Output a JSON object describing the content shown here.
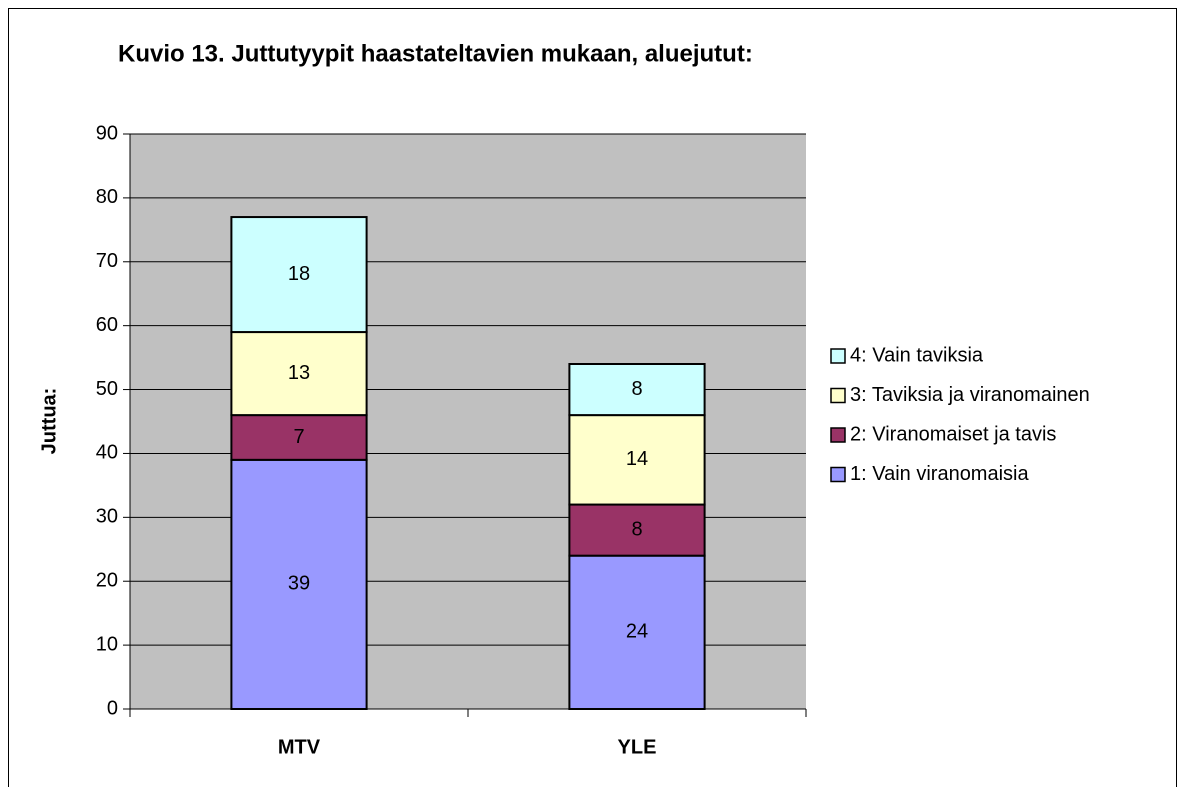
{
  "chart_data": {
    "type": "stacked_bar",
    "title": "Kuvio 13. Juttutyypit haastateltavien mukaan, aluejutut:",
    "y_label": "Juttua:",
    "categories": [
      "MTV",
      "YLE"
    ],
    "series": [
      {
        "name": "1: Vain viranomaisia",
        "color": "#9999ff",
        "values": [
          39,
          24
        ]
      },
      {
        "name": "2: Viranomaiset ja tavis",
        "color": "#993366",
        "values": [
          7,
          8
        ]
      },
      {
        "name": "3: Taviksia ja viranomainen",
        "color": "#ffffcc",
        "values": [
          13,
          14
        ]
      },
      {
        "name": "4: Vain taviksia",
        "color": "#ccffff",
        "values": [
          18,
          8
        ]
      }
    ],
    "ylim": [
      0,
      90
    ],
    "yticks": [
      0,
      10,
      20,
      30,
      40,
      50,
      60,
      70,
      80,
      90
    ],
    "grid": true,
    "legend": "right",
    "plot_background": "#c0c0c0"
  }
}
